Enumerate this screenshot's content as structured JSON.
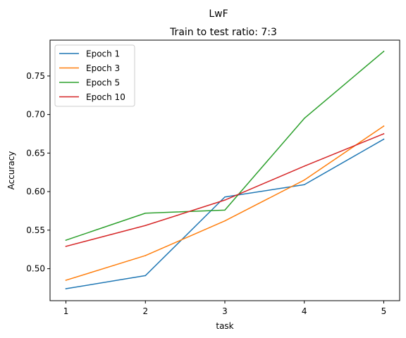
{
  "chart_data": {
    "type": "line",
    "suptitle": "LwF",
    "title": "Train to test ratio: 7:3",
    "xlabel": "task",
    "ylabel": "Accuracy",
    "x": [
      1,
      2,
      3,
      4,
      5
    ],
    "xticks": [
      "1",
      "2",
      "3",
      "4",
      "5"
    ],
    "yticks": [
      "0.50",
      "0.55",
      "0.60",
      "0.65",
      "0.70",
      "0.75"
    ],
    "xlim": [
      0.8,
      5.2
    ],
    "ylim": [
      0.4585,
      0.7965
    ],
    "grid": false,
    "legend_position": "upper-left",
    "series": [
      {
        "name": "Epoch 1",
        "color": "#1f77b4",
        "values": [
          0.474,
          0.491,
          0.593,
          0.609,
          0.668
        ]
      },
      {
        "name": "Epoch 3",
        "color": "#ff7f0e",
        "values": [
          0.485,
          0.517,
          0.562,
          0.615,
          0.685
        ]
      },
      {
        "name": "Epoch 5",
        "color": "#2ca02c",
        "values": [
          0.537,
          0.572,
          0.576,
          0.695,
          0.782
        ]
      },
      {
        "name": "Epoch 10",
        "color": "#d62728",
        "values": [
          0.529,
          0.556,
          0.589,
          0.633,
          0.675
        ]
      }
    ]
  }
}
